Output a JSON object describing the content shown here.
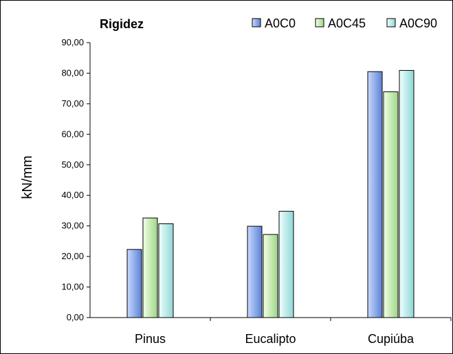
{
  "chart_data": {
    "type": "bar",
    "title": "Rigidez",
    "xlabel": "",
    "ylabel": "kN/mm",
    "categories": [
      "Pinus",
      "Eucalipto",
      "Cupiúba"
    ],
    "series": [
      {
        "name": "A0C0",
        "values": [
          22.3,
          29.9,
          80.5
        ],
        "color_top": "#c9d9ff",
        "color_bottom": "#5b82d4"
      },
      {
        "name": "A0C45",
        "values": [
          32.6,
          27.2,
          73.9
        ],
        "color_top": "#f2ffe6",
        "color_bottom": "#9fd687"
      },
      {
        "name": "A0C90",
        "values": [
          30.7,
          34.8,
          80.9
        ],
        "color_top": "#f0ffff",
        "color_bottom": "#8fd6d6"
      }
    ],
    "ylim": [
      0,
      90
    ],
    "yticks": [
      "0,00",
      "10,00",
      "20,00",
      "30,00",
      "40,00",
      "50,00",
      "60,00",
      "70,00",
      "80,00",
      "90,00"
    ],
    "grid": false,
    "legend_position": "top-right"
  }
}
